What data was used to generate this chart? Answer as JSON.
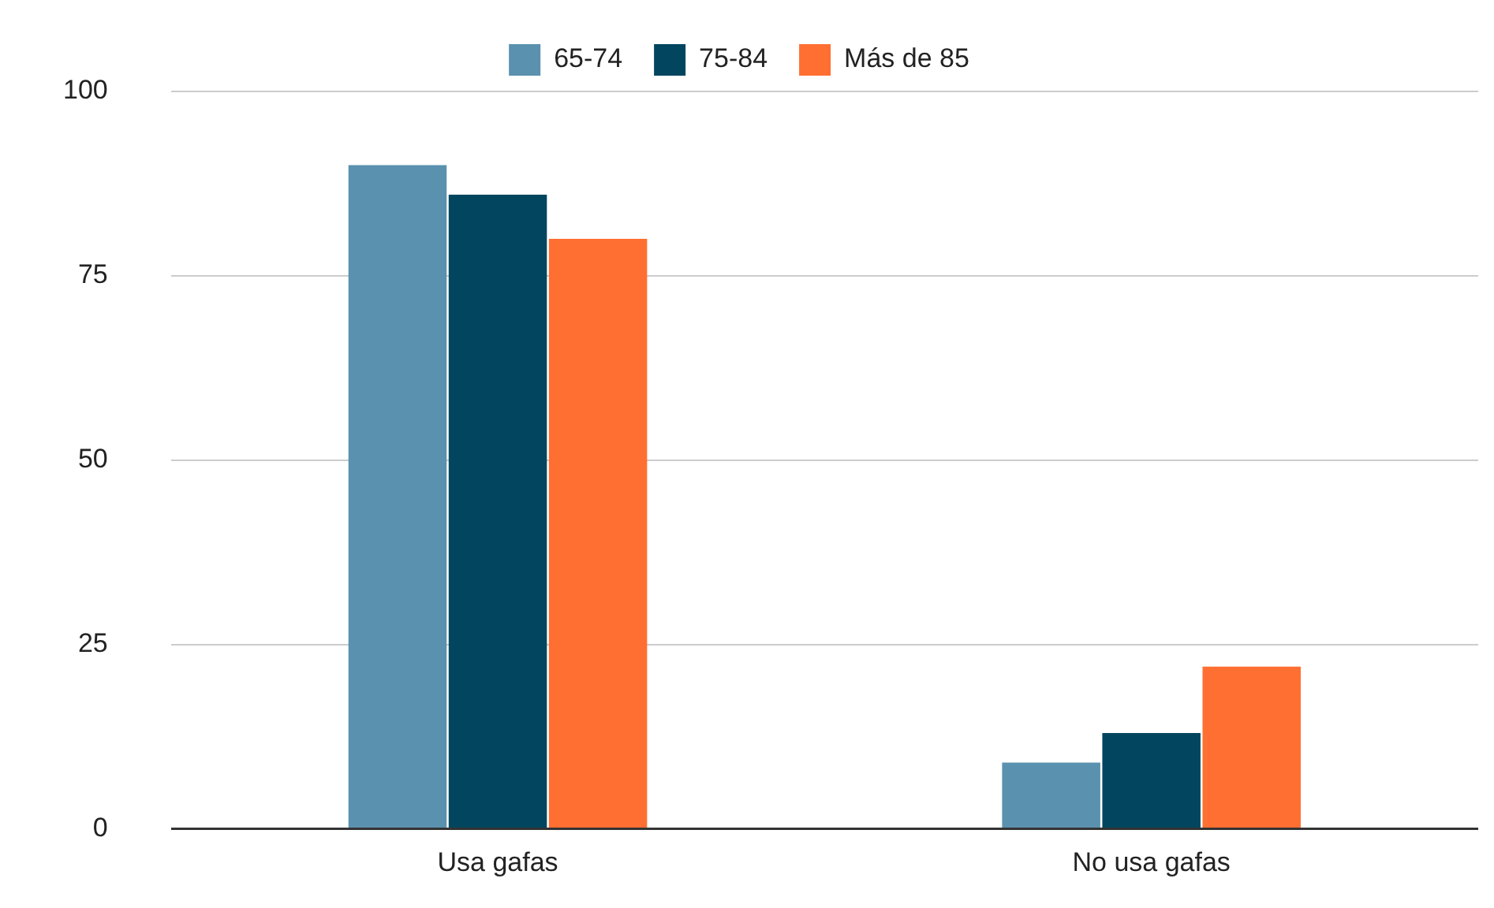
{
  "chart_data": {
    "type": "bar",
    "categories": [
      "Usa gafas",
      "No usa gafas"
    ],
    "series": [
      {
        "name": "65-74",
        "color": "#5a91ae",
        "values": [
          90,
          9
        ]
      },
      {
        "name": "75-84",
        "color": "#02455f",
        "values": [
          86,
          13
        ]
      },
      {
        "name": "Más de 85",
        "color": "#ff6f31",
        "values": [
          80,
          22
        ]
      }
    ],
    "ylim": [
      0,
      100
    ],
    "yticks": [
      0,
      25,
      50,
      75,
      100
    ],
    "grid": "y",
    "legend": "top"
  }
}
